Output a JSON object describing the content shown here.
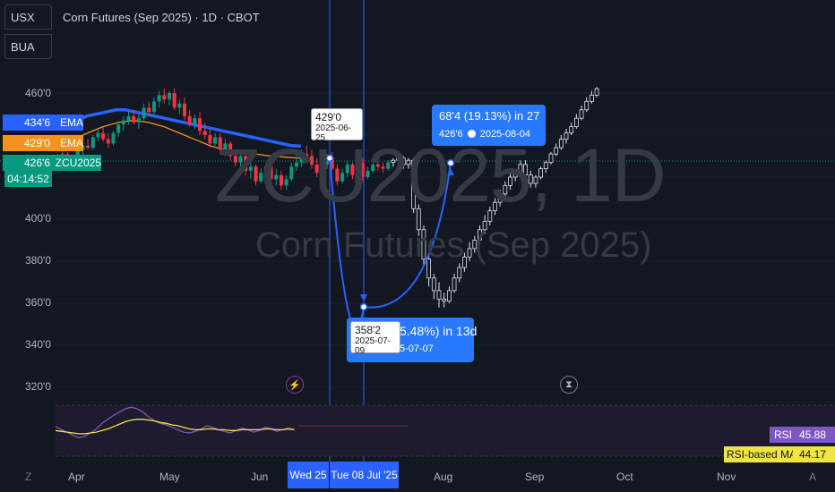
{
  "symbol_buttons": [
    "USX",
    "BUA"
  ],
  "title": "Corn Futures (Sep 2025) · 1D · CBOT",
  "watermark": {
    "big": "ZCU2025, 1D",
    "small": "Corn Futures (Sep 2025)"
  },
  "price_ticks": [
    "460'0",
    "400'0",
    "380'0",
    "360'0",
    "340'0",
    "320'0"
  ],
  "badges": [
    {
      "value": "434'6",
      "label": "EMA",
      "color": "#2962ff"
    },
    {
      "value": "429'0",
      "label": "EMA",
      "color": "#f7931a"
    },
    {
      "value": "426'6",
      "label": "ZCU2025",
      "color": "#089981"
    }
  ],
  "countdown": "04:14:52",
  "callout_rise": {
    "line1": "68'4 (19.13%) in 27",
    "value": "426'6",
    "date": "2025-08-04"
  },
  "callout_drop": {
    "line1": "5.48%) in 13d",
    "line2": "5-07-07"
  },
  "label_start": {
    "value": "429'0",
    "date": "2025-06-25"
  },
  "label_low": {
    "value": "358'2",
    "date": "2025-07-09"
  },
  "x_ticks": [
    "Apr",
    "May",
    "Jun",
    "Aug",
    "Sep",
    "Oct",
    "Nov"
  ],
  "x_highlights": [
    "Wed 25",
    "Tue 08 Jul '25"
  ],
  "rsi": {
    "name": "RSI",
    "value": "45.88",
    "ma_name": "RSI-based MA",
    "ma_value": "44.17"
  },
  "corner_left": "Z",
  "corner_right": "A",
  "colors": {
    "background": "#131722",
    "up": "#089981",
    "down": "#f23645",
    "ema_fast": "#2962ff",
    "ema_slow": "#f7931a",
    "accent": "#2962ff",
    "rsi_line": "#7e57c2",
    "rsi_ma": "#f0e442"
  },
  "chart_data": {
    "type": "candlestick",
    "candles": [
      [
        428,
        431,
        424,
        429
      ],
      [
        429,
        433,
        426,
        431
      ],
      [
        431,
        432,
        425,
        426
      ],
      [
        426,
        430,
        423,
        428
      ],
      [
        428,
        434,
        427,
        433
      ],
      [
        433,
        437,
        430,
        435
      ],
      [
        435,
        438,
        433,
        434
      ],
      [
        434,
        440,
        433,
        439
      ],
      [
        439,
        443,
        437,
        441
      ],
      [
        441,
        444,
        437,
        438
      ],
      [
        438,
        441,
        434,
        436
      ],
      [
        436,
        442,
        435,
        441
      ],
      [
        441,
        446,
        439,
        445
      ],
      [
        445,
        449,
        442,
        447
      ],
      [
        447,
        451,
        445,
        449
      ],
      [
        449,
        452,
        445,
        446
      ],
      [
        446,
        450,
        443,
        448
      ],
      [
        448,
        455,
        447,
        453
      ],
      [
        453,
        456,
        449,
        451
      ],
      [
        451,
        458,
        450,
        456
      ],
      [
        456,
        461,
        453,
        459
      ],
      [
        459,
        462,
        455,
        457
      ],
      [
        457,
        461,
        454,
        460
      ],
      [
        460,
        462,
        452,
        453
      ],
      [
        453,
        457,
        450,
        455
      ],
      [
        455,
        458,
        447,
        449
      ],
      [
        449,
        452,
        444,
        445
      ],
      [
        445,
        450,
        443,
        448
      ],
      [
        448,
        451,
        440,
        442
      ],
      [
        442,
        446,
        438,
        440
      ],
      [
        440,
        443,
        434,
        436
      ],
      [
        436,
        441,
        435,
        439
      ],
      [
        439,
        441,
        431,
        433
      ],
      [
        433,
        438,
        430,
        436
      ],
      [
        436,
        437,
        428,
        430
      ],
      [
        430,
        433,
        425,
        427
      ],
      [
        427,
        432,
        424,
        430
      ],
      [
        430,
        431,
        421,
        423
      ],
      [
        423,
        427,
        419,
        425
      ],
      [
        425,
        426,
        416,
        418
      ],
      [
        418,
        424,
        417,
        422
      ],
      [
        422,
        427,
        420,
        425
      ],
      [
        425,
        426,
        417,
        419
      ],
      [
        419,
        424,
        416,
        421
      ],
      [
        421,
        423,
        414,
        416
      ],
      [
        416,
        421,
        414,
        419
      ],
      [
        419,
        427,
        418,
        425
      ],
      [
        425,
        430,
        423,
        427
      ],
      [
        427,
        433,
        425,
        431
      ],
      [
        431,
        435,
        428,
        430
      ],
      [
        430,
        433,
        424,
        426
      ],
      [
        426,
        429,
        420,
        422
      ],
      [
        422,
        428,
        421,
        426
      ],
      [
        426,
        431,
        424,
        429
      ],
      [
        429,
        432,
        423,
        424
      ],
      [
        424,
        426,
        416,
        418
      ],
      [
        418,
        424,
        417,
        422
      ],
      [
        422,
        428,
        420,
        426
      ],
      [
        426,
        427,
        419,
        421
      ],
      [
        421,
        429,
        420,
        427
      ],
      [
        427,
        429,
        418,
        420
      ],
      [
        420,
        425,
        419,
        423
      ],
      [
        423,
        428,
        422,
        426
      ],
      [
        426,
        428,
        423,
        425
      ],
      [
        425,
        427,
        422,
        424
      ],
      [
        424,
        428,
        423,
        427
      ],
      [
        427,
        429,
        425,
        428
      ],
      [
        428,
        431,
        426,
        429
      ],
      [
        429,
        430,
        424,
        426
      ],
      [
        426,
        429,
        424,
        428
      ],
      [
        428,
        429,
        403,
        405
      ],
      [
        405,
        407,
        392,
        395
      ],
      [
        395,
        397,
        378,
        381
      ],
      [
        381,
        383,
        368,
        372
      ],
      [
        372,
        374,
        362,
        366
      ],
      [
        366,
        370,
        358,
        362
      ],
      [
        362,
        365,
        358,
        361
      ],
      [
        361,
        368,
        360,
        366
      ],
      [
        366,
        374,
        365,
        372
      ],
      [
        372,
        379,
        370,
        377
      ],
      [
        377,
        384,
        375,
        382
      ],
      [
        382,
        389,
        380,
        386
      ],
      [
        386,
        392,
        384,
        390
      ],
      [
        390,
        397,
        388,
        395
      ],
      [
        395,
        402,
        393,
        399
      ],
      [
        399,
        406,
        397,
        404
      ],
      [
        404,
        410,
        402,
        408
      ],
      [
        408,
        414,
        406,
        412
      ],
      [
        412,
        418,
        410,
        416
      ],
      [
        416,
        422,
        414,
        420
      ],
      [
        420,
        424,
        418,
        422
      ],
      [
        422,
        428,
        421,
        426
      ],
      [
        426,
        428,
        419,
        421
      ],
      [
        421,
        423,
        415,
        417
      ],
      [
        417,
        421,
        415,
        420
      ],
      [
        420,
        425,
        419,
        424
      ],
      [
        424,
        428,
        422,
        427
      ],
      [
        427,
        432,
        426,
        431
      ],
      [
        431,
        436,
        430,
        434
      ],
      [
        434,
        440,
        433,
        438
      ],
      [
        438,
        443,
        436,
        441
      ],
      [
        441,
        446,
        440,
        444
      ],
      [
        444,
        450,
        443,
        448
      ],
      [
        448,
        454,
        447,
        452
      ],
      [
        452,
        458,
        451,
        456
      ],
      [
        456,
        461,
        455,
        459
      ],
      [
        459,
        463,
        458,
        462
      ]
    ],
    "ema_fast": [
      443,
      445,
      447,
      449,
      450,
      451,
      452,
      452,
      451,
      450,
      449,
      448,
      447,
      446,
      445,
      444,
      443,
      442,
      441,
      440,
      439,
      438,
      437,
      436,
      435,
      434.75
    ],
    "ema_slow": [
      435,
      438,
      441,
      444,
      446,
      447,
      446,
      444,
      441,
      438,
      435,
      433,
      432,
      431,
      430,
      429.5,
      429
    ],
    "measure_drop": {
      "from": {
        "date": "2025-06-25",
        "price": 429.0
      },
      "to": {
        "date": "2025-07-09",
        "price": 358.25
      }
    },
    "measure_rise": {
      "from": {
        "date": "2025-07-09",
        "price": 358.25
      },
      "to": {
        "date": "2025-08-04",
        "price": 426.75
      }
    },
    "rsi_series": [
      48,
      44,
      41,
      37,
      34,
      36,
      40,
      45,
      52,
      57,
      62,
      66,
      70,
      72,
      70,
      66,
      60,
      55,
      52,
      50,
      47,
      44,
      41,
      40,
      42,
      45,
      49,
      47,
      44,
      42,
      40,
      43,
      46,
      44,
      41,
      43,
      47,
      45,
      42,
      44,
      46,
      44
    ],
    "rsi_ma_series": [
      43,
      42,
      41,
      40,
      39,
      39,
      40,
      41,
      43,
      45,
      48,
      51,
      54,
      56,
      57,
      57,
      56,
      55,
      53,
      52,
      50,
      49,
      47,
      45,
      44,
      44,
      45,
      45,
      44,
      44,
      43,
      43,
      44,
      44,
      44,
      44,
      45,
      45,
      44,
      44,
      45,
      44
    ]
  }
}
